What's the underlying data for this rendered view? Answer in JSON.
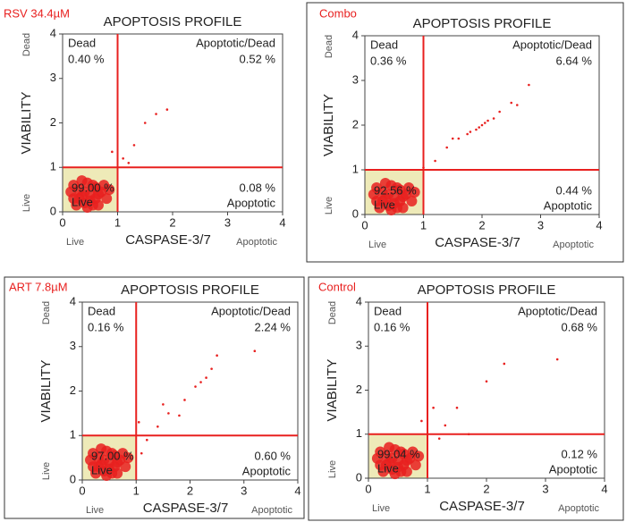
{
  "chart_data": [
    {
      "type": "scatter",
      "panel_label": "RSV 34.4µM",
      "title": "APOPTOSIS PROFILE",
      "xlabel": "CASPASE-3/7",
      "ylabel": "VIABILITY",
      "corner_labels": {
        "x_low": "Live",
        "x_high": "Apoptotic",
        "y_high": "Dead",
        "y_low": "Live"
      },
      "quadrants": {
        "dead": [
          "Dead",
          "0.40 %"
        ],
        "apoptotic_dead": [
          "Apoptotic/Dead",
          "0.52 %"
        ],
        "apoptotic": [
          "0.08 %",
          "Apoptotic"
        ],
        "live": [
          "99.00 %",
          "Live"
        ]
      },
      "xlim": [
        0,
        4
      ],
      "ylim": [
        0,
        4
      ],
      "xticks": [
        0,
        1,
        2,
        3,
        4
      ],
      "yticks": [
        0,
        1,
        2,
        3,
        4
      ],
      "gates": {
        "x": 1,
        "y": 1
      },
      "color": "#e8201f",
      "x": [
        0.2,
        0.3,
        0.4,
        0.5,
        0.6,
        0.35,
        0.55,
        0.7,
        0.25,
        0.45,
        0.65,
        0.8,
        0.15,
        0.4,
        0.5,
        0.6,
        0.3,
        0.75,
        0.2,
        0.55,
        0.45,
        0.85,
        0.35,
        0.65,
        1.3,
        1.5,
        1.9,
        1.7,
        1.1,
        0.9,
        1.2
      ],
      "y": [
        0.3,
        0.5,
        0.2,
        0.4,
        0.3,
        0.7,
        0.6,
        0.45,
        0.15,
        0.1,
        0.15,
        0.3,
        0.45,
        0.45,
        0.25,
        0.55,
        0.3,
        0.6,
        0.6,
        0.15,
        0.65,
        0.5,
        0.35,
        0.4,
        1.5,
        2.0,
        2.3,
        2.2,
        1.2,
        1.35,
        1.1
      ]
    },
    {
      "type": "scatter",
      "panel_label": "Combo",
      "title": "APOPTOSIS PROFILE",
      "xlabel": "CASPASE-3/7",
      "ylabel": "VIABILITY",
      "corner_labels": {
        "x_low": "Live",
        "x_high": "Apoptotic",
        "y_high": "Dead",
        "y_low": "Live"
      },
      "quadrants": {
        "dead": [
          "Dead",
          "0.36 %"
        ],
        "apoptotic_dead": [
          "Apoptotic/Dead",
          "6.64 %"
        ],
        "apoptotic": [
          "0.44 %",
          "Apoptotic"
        ],
        "live": [
          "92.56 %",
          "Live"
        ]
      },
      "xlim": [
        0,
        4
      ],
      "ylim": [
        0,
        4
      ],
      "xticks": [
        0,
        1,
        2,
        3,
        4
      ],
      "yticks": [
        0,
        1,
        2,
        3,
        4
      ],
      "gates": {
        "x": 1,
        "y": 1
      },
      "color": "#e8201f",
      "x": [
        0.2,
        0.3,
        0.4,
        0.5,
        0.6,
        0.35,
        0.55,
        0.7,
        0.25,
        0.45,
        0.65,
        0.8,
        0.15,
        0.4,
        0.5,
        0.6,
        0.3,
        0.75,
        0.2,
        0.55,
        0.45,
        0.85,
        0.35,
        0.65,
        1.6,
        1.8,
        1.9,
        2.0,
        2.1,
        2.2,
        1.95,
        2.05,
        2.3,
        2.5,
        2.8,
        1.4,
        1.2,
        1.0,
        1.5,
        2.6,
        1.75
      ],
      "y": [
        0.3,
        0.5,
        0.2,
        0.4,
        0.3,
        0.7,
        0.6,
        0.45,
        0.15,
        0.1,
        0.15,
        0.3,
        0.45,
        0.45,
        0.25,
        0.55,
        0.3,
        0.6,
        0.6,
        0.15,
        0.65,
        0.5,
        0.35,
        0.4,
        1.7,
        1.85,
        1.9,
        2.0,
        2.1,
        2.15,
        1.95,
        2.05,
        2.3,
        2.5,
        2.9,
        1.5,
        1.2,
        1.05,
        1.7,
        2.45,
        1.8
      ]
    },
    {
      "type": "scatter",
      "panel_label": "ART 7.8µM",
      "title": "APOPTOSIS PROFILE",
      "xlabel": "CASPASE-3/7",
      "ylabel": "VIABILITY",
      "corner_labels": {
        "x_low": "Live",
        "x_high": "Apoptotic",
        "y_high": "Dead",
        "y_low": "Live"
      },
      "quadrants": {
        "dead": [
          "Dead",
          "0.16 %"
        ],
        "apoptotic_dead": [
          "Apoptotic/Dead",
          "2.24 %"
        ],
        "apoptotic": [
          "0.60 %",
          "Apoptotic"
        ],
        "live": [
          "97.00 %",
          "Live"
        ]
      },
      "xlim": [
        0,
        4
      ],
      "ylim": [
        0,
        4
      ],
      "xticks": [
        0,
        1,
        2,
        3,
        4
      ],
      "yticks": [
        0,
        1,
        2,
        3,
        4
      ],
      "gates": {
        "x": 1,
        "y": 1
      },
      "color": "#e8201f",
      "x": [
        0.2,
        0.3,
        0.4,
        0.5,
        0.6,
        0.35,
        0.55,
        0.7,
        0.25,
        0.45,
        0.65,
        0.8,
        0.15,
        0.4,
        0.5,
        0.6,
        0.3,
        0.75,
        0.2,
        0.55,
        0.45,
        0.85,
        0.35,
        0.65,
        1.05,
        1.2,
        1.1,
        1.4,
        1.6,
        1.9,
        2.1,
        2.2,
        2.3,
        2.4,
        3.2,
        1.5,
        1.8,
        2.5
      ],
      "y": [
        0.3,
        0.5,
        0.2,
        0.4,
        0.3,
        0.7,
        0.6,
        0.45,
        0.15,
        0.1,
        0.15,
        0.3,
        0.45,
        0.45,
        0.25,
        0.55,
        0.3,
        0.6,
        0.6,
        0.15,
        0.65,
        0.5,
        0.35,
        0.4,
        1.3,
        0.9,
        0.6,
        1.2,
        1.5,
        1.8,
        2.1,
        2.2,
        2.3,
        2.5,
        2.9,
        1.7,
        1.45,
        2.8
      ]
    },
    {
      "type": "scatter",
      "panel_label": "Control",
      "title": "APOPTOSIS PROFILE",
      "xlabel": "CASPASE-3/7",
      "ylabel": "VIABILITY",
      "corner_labels": {
        "x_low": "Live",
        "x_high": "Apoptotic",
        "y_high": "Dead",
        "y_low": "Live"
      },
      "quadrants": {
        "dead": [
          "Dead",
          "0.16 %"
        ],
        "apoptotic_dead": [
          "Apoptotic/Dead",
          "0.68 %"
        ],
        "apoptotic": [
          "0.12 %",
          "Apoptotic"
        ],
        "live": [
          "99.04 %",
          "Live"
        ]
      },
      "xlim": [
        0,
        4
      ],
      "ylim": [
        0,
        4
      ],
      "xticks": [
        0,
        1,
        2,
        3,
        4
      ],
      "yticks": [
        0,
        1,
        2,
        3,
        4
      ],
      "gates": {
        "x": 1,
        "y": 1
      },
      "color": "#e8201f",
      "x": [
        0.2,
        0.3,
        0.4,
        0.5,
        0.6,
        0.35,
        0.55,
        0.7,
        0.25,
        0.45,
        0.65,
        0.8,
        0.15,
        0.4,
        0.5,
        0.6,
        0.3,
        0.75,
        0.2,
        0.55,
        0.45,
        0.85,
        0.35,
        0.65,
        0.9,
        1.3,
        1.2,
        1.5,
        2.0,
        2.3,
        3.2,
        1.7,
        1.1
      ],
      "y": [
        0.3,
        0.5,
        0.2,
        0.4,
        0.3,
        0.7,
        0.6,
        0.45,
        0.15,
        0.1,
        0.15,
        0.3,
        0.45,
        0.45,
        0.25,
        0.55,
        0.3,
        0.6,
        0.6,
        0.15,
        0.65,
        0.5,
        0.35,
        0.4,
        1.3,
        1.2,
        0.9,
        1.6,
        2.2,
        2.6,
        2.7,
        1.0,
        1.6
      ]
    }
  ]
}
